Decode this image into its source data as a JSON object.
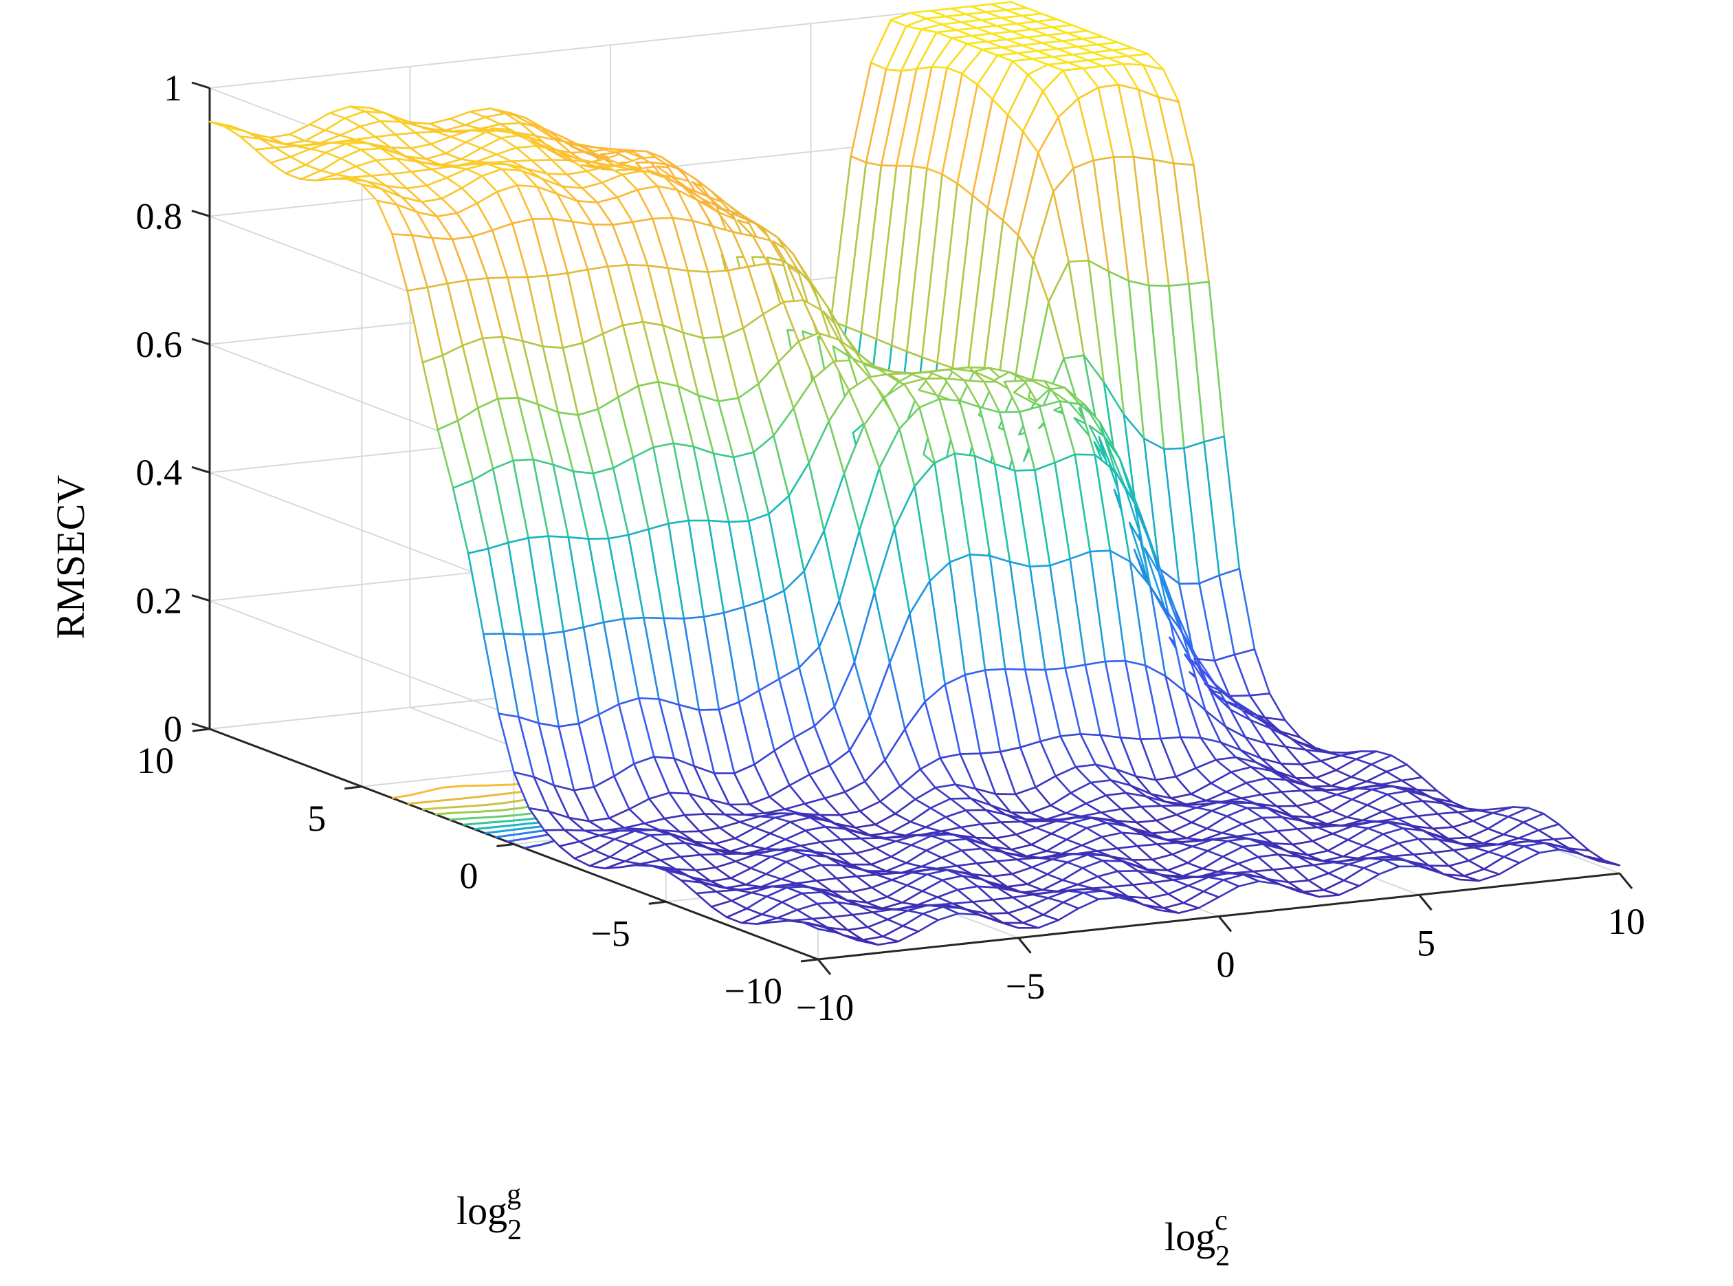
{
  "chart_data": {
    "type": "surface",
    "title": "",
    "xlabel": {
      "base": "log",
      "subscript": "2",
      "superscript": "c"
    },
    "ylabel": {
      "base": "log",
      "subscript": "2",
      "superscript": "g"
    },
    "zlabel": "RMSECV",
    "xlim": [
      -10,
      10
    ],
    "ylim": [
      -10,
      10
    ],
    "zlim": [
      0,
      1
    ],
    "x_ticks": [
      "−10",
      "−5",
      "0",
      "5",
      "10"
    ],
    "y_ticks": [
      "−10",
      "−5",
      "0",
      "5",
      "10"
    ],
    "z_ticks": [
      "0",
      "0.2",
      "0.4",
      "0.6",
      "0.8",
      "1"
    ],
    "x_tick_values": [
      -10,
      -5,
      0,
      5,
      10
    ],
    "y_tick_values": [
      -10,
      -5,
      0,
      5,
      10
    ],
    "z_tick_values": [
      0,
      0.2,
      0.4,
      0.6,
      0.8,
      1
    ],
    "grid": true,
    "box": false,
    "colormap": [
      "#3e26a8",
      "#3b5cf5",
      "#1c9de0",
      "#19c3aa",
      "#7bd15a",
      "#d3c03a",
      "#fbb33c",
      "#f9e419"
    ],
    "contour_on_floor": true,
    "grid_resolution": 41,
    "surface_description": {
      "g_high_region": {
        "g_range": [
          5,
          10
        ],
        "c_range": [
          -10,
          0
        ],
        "rmsecv": 0.9
      },
      "mid_plateau": {
        "g_range": [
          0,
          5
        ],
        "c_range": [
          -5,
          5
        ],
        "rmsecv": 0.62
      },
      "step_down": {
        "c_from": -2,
        "c_to": 0,
        "rmsecv_drop_to": 0.03
      },
      "low_region": {
        "g_range": [
          -10,
          0
        ],
        "c_range": [
          0,
          10
        ],
        "rmsecv": 0.05
      },
      "ridge": {
        "g_range": [
          5,
          10
        ],
        "c_range": [
          5,
          10
        ],
        "rmsecv_peak": 1.0
      }
    }
  }
}
